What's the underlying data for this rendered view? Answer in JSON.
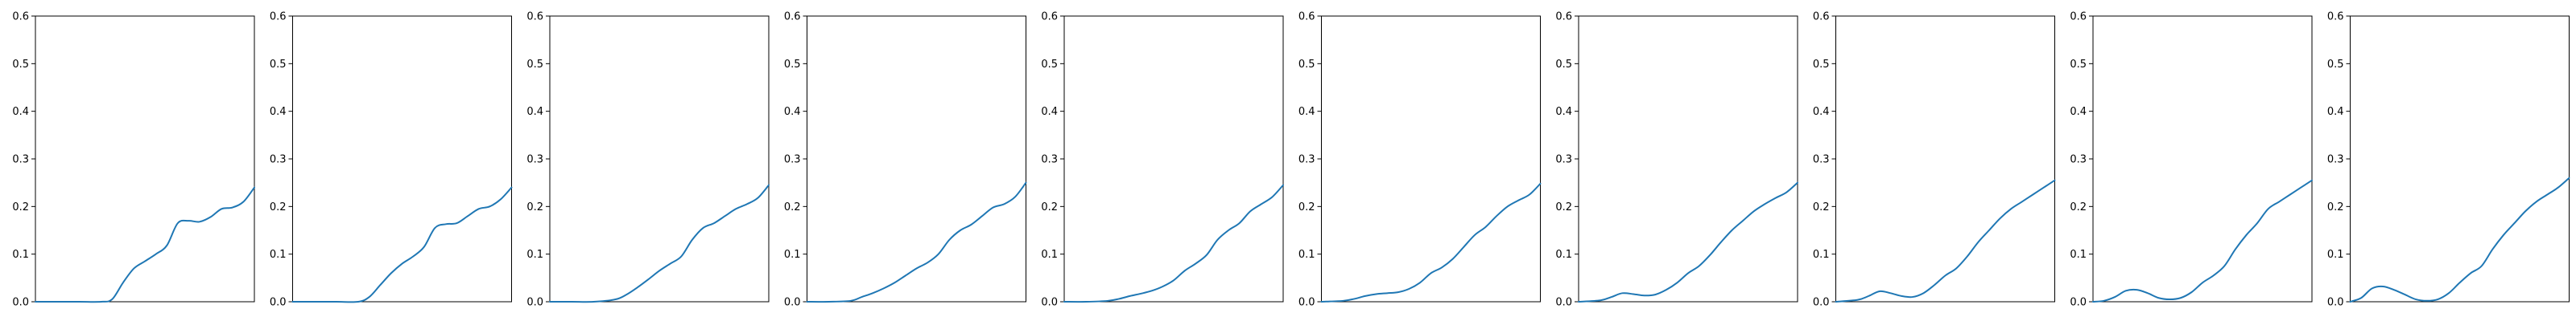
{
  "colors": {
    "series": "#1f77b4",
    "axes": "#000000",
    "background": "#ffffff"
  },
  "chart_data": [
    {
      "type": "line",
      "title": "",
      "xlabel": "",
      "ylabel": "",
      "ylim": [
        0,
        0.6
      ],
      "yticks": [
        "0.0",
        "0.1",
        "0.2",
        "0.3",
        "0.4",
        "0.5",
        "0.6"
      ],
      "x_ticks_shown": false,
      "grid": false,
      "series": [
        {
          "x": [
            0,
            0.1,
            0.2,
            0.3,
            0.35,
            0.4,
            0.45,
            0.5,
            0.55,
            0.6,
            0.65,
            0.7,
            0.75,
            0.8,
            0.85,
            0.9,
            0.95,
            1.0
          ],
          "values": [
            0.0,
            0.0,
            0.0,
            0.0,
            0.005,
            0.04,
            0.07,
            0.085,
            0.1,
            0.118,
            0.165,
            0.17,
            0.168,
            0.178,
            0.195,
            0.198,
            0.21,
            0.24
          ]
        }
      ]
    },
    {
      "type": "line",
      "title": "",
      "xlabel": "",
      "ylabel": "",
      "ylim": [
        0,
        0.6
      ],
      "yticks": [
        "0.0",
        "0.1",
        "0.2",
        "0.3",
        "0.4",
        "0.5",
        "0.6"
      ],
      "x_ticks_shown": false,
      "grid": false,
      "series": [
        {
          "x": [
            0,
            0.1,
            0.2,
            0.3,
            0.35,
            0.4,
            0.45,
            0.5,
            0.55,
            0.6,
            0.65,
            0.7,
            0.75,
            0.8,
            0.85,
            0.9,
            0.95,
            1.0
          ],
          "values": [
            0.0,
            0.0,
            0.0,
            0.0,
            0.01,
            0.035,
            0.06,
            0.08,
            0.095,
            0.115,
            0.155,
            0.163,
            0.165,
            0.18,
            0.195,
            0.2,
            0.215,
            0.24
          ]
        }
      ]
    },
    {
      "type": "line",
      "title": "",
      "xlabel": "",
      "ylabel": "",
      "ylim": [
        0,
        0.6
      ],
      "yticks": [
        "0.0",
        "0.1",
        "0.2",
        "0.3",
        "0.4",
        "0.5",
        "0.6"
      ],
      "x_ticks_shown": false,
      "grid": false,
      "series": [
        {
          "x": [
            0,
            0.1,
            0.2,
            0.3,
            0.35,
            0.4,
            0.45,
            0.5,
            0.55,
            0.6,
            0.65,
            0.7,
            0.75,
            0.8,
            0.85,
            0.9,
            0.95,
            1.0
          ],
          "values": [
            0.0,
            0.0,
            0.0,
            0.005,
            0.015,
            0.03,
            0.047,
            0.065,
            0.08,
            0.095,
            0.13,
            0.155,
            0.165,
            0.18,
            0.195,
            0.205,
            0.218,
            0.245
          ]
        }
      ]
    },
    {
      "type": "line",
      "title": "",
      "xlabel": "",
      "ylabel": "",
      "ylim": [
        0,
        0.6
      ],
      "yticks": [
        "0.0",
        "0.1",
        "0.2",
        "0.3",
        "0.4",
        "0.5",
        "0.6"
      ],
      "x_ticks_shown": false,
      "grid": false,
      "series": [
        {
          "x": [
            0,
            0.1,
            0.2,
            0.25,
            0.3,
            0.35,
            0.4,
            0.45,
            0.5,
            0.55,
            0.6,
            0.65,
            0.7,
            0.75,
            0.8,
            0.85,
            0.9,
            0.95,
            1.0
          ],
          "values": [
            0.0,
            0.0,
            0.002,
            0.01,
            0.018,
            0.028,
            0.04,
            0.055,
            0.07,
            0.082,
            0.1,
            0.13,
            0.15,
            0.162,
            0.18,
            0.198,
            0.205,
            0.22,
            0.25
          ]
        }
      ]
    },
    {
      "type": "line",
      "title": "",
      "xlabel": "",
      "ylabel": "",
      "ylim": [
        0,
        0.6
      ],
      "yticks": [
        "0.0",
        "0.1",
        "0.2",
        "0.3",
        "0.4",
        "0.5",
        "0.6"
      ],
      "x_ticks_shown": false,
      "grid": false,
      "series": [
        {
          "x": [
            0,
            0.1,
            0.2,
            0.25,
            0.3,
            0.35,
            0.4,
            0.45,
            0.5,
            0.55,
            0.6,
            0.65,
            0.7,
            0.75,
            0.8,
            0.85,
            0.9,
            0.95,
            1.0
          ],
          "values": [
            0.0,
            0.0,
            0.002,
            0.006,
            0.012,
            0.017,
            0.023,
            0.032,
            0.045,
            0.065,
            0.08,
            0.098,
            0.13,
            0.15,
            0.165,
            0.19,
            0.205,
            0.22,
            0.245
          ]
        }
      ]
    },
    {
      "type": "line",
      "title": "",
      "xlabel": "",
      "ylabel": "",
      "ylim": [
        0,
        0.6
      ],
      "yticks": [
        "0.0",
        "0.1",
        "0.2",
        "0.3",
        "0.4",
        "0.5",
        "0.6"
      ],
      "x_ticks_shown": false,
      "grid": false,
      "series": [
        {
          "x": [
            0,
            0.1,
            0.15,
            0.2,
            0.25,
            0.3,
            0.35,
            0.4,
            0.45,
            0.5,
            0.55,
            0.6,
            0.65,
            0.7,
            0.75,
            0.8,
            0.85,
            0.9,
            0.95,
            1.0
          ],
          "values": [
            0.0,
            0.002,
            0.006,
            0.012,
            0.016,
            0.018,
            0.02,
            0.027,
            0.04,
            0.06,
            0.072,
            0.09,
            0.115,
            0.14,
            0.157,
            0.18,
            0.2,
            0.213,
            0.225,
            0.248
          ]
        }
      ]
    },
    {
      "type": "line",
      "title": "",
      "xlabel": "",
      "ylabel": "",
      "ylim": [
        0,
        0.6
      ],
      "yticks": [
        "0.0",
        "0.1",
        "0.2",
        "0.3",
        "0.4",
        "0.5",
        "0.6"
      ],
      "x_ticks_shown": false,
      "grid": false,
      "series": [
        {
          "x": [
            0,
            0.1,
            0.15,
            0.2,
            0.25,
            0.3,
            0.35,
            0.4,
            0.45,
            0.5,
            0.55,
            0.6,
            0.65,
            0.7,
            0.75,
            0.8,
            0.85,
            0.9,
            0.95,
            1.0
          ],
          "values": [
            0.0,
            0.003,
            0.01,
            0.018,
            0.016,
            0.013,
            0.015,
            0.025,
            0.04,
            0.06,
            0.075,
            0.098,
            0.125,
            0.15,
            0.17,
            0.19,
            0.205,
            0.218,
            0.23,
            0.25
          ]
        }
      ]
    },
    {
      "type": "line",
      "title": "",
      "xlabel": "",
      "ylabel": "",
      "ylim": [
        0,
        0.6
      ],
      "yticks": [
        "0.0",
        "0.1",
        "0.2",
        "0.3",
        "0.4",
        "0.5",
        "0.6"
      ],
      "x_ticks_shown": false,
      "grid": false,
      "series": [
        {
          "x": [
            0,
            0.1,
            0.15,
            0.2,
            0.25,
            0.3,
            0.35,
            0.4,
            0.45,
            0.5,
            0.55,
            0.6,
            0.65,
            0.7,
            0.75,
            0.8,
            0.85,
            0.9,
            0.95,
            1.0
          ],
          "values": [
            0.0,
            0.004,
            0.012,
            0.022,
            0.018,
            0.012,
            0.01,
            0.018,
            0.035,
            0.055,
            0.07,
            0.095,
            0.125,
            0.15,
            0.175,
            0.195,
            0.21,
            0.225,
            0.24,
            0.255
          ]
        }
      ]
    },
    {
      "type": "line",
      "title": "",
      "xlabel": "",
      "ylabel": "",
      "ylim": [
        0,
        0.6
      ],
      "yticks": [
        "0.0",
        "0.1",
        "0.2",
        "0.3",
        "0.4",
        "0.5",
        "0.6"
      ],
      "x_ticks_shown": false,
      "grid": false,
      "series": [
        {
          "x": [
            0,
            0.05,
            0.1,
            0.15,
            0.2,
            0.25,
            0.3,
            0.35,
            0.4,
            0.45,
            0.5,
            0.55,
            0.6,
            0.65,
            0.7,
            0.75,
            0.8,
            0.85,
            0.9,
            0.95,
            1.0
          ],
          "values": [
            0.0,
            0.002,
            0.01,
            0.023,
            0.025,
            0.018,
            0.008,
            0.005,
            0.008,
            0.02,
            0.04,
            0.055,
            0.075,
            0.11,
            0.14,
            0.165,
            0.195,
            0.21,
            0.225,
            0.24,
            0.255
          ]
        }
      ]
    },
    {
      "type": "line",
      "title": "",
      "xlabel": "",
      "ylabel": "",
      "ylim": [
        0,
        0.6
      ],
      "yticks": [
        "0.0",
        "0.1",
        "0.2",
        "0.3",
        "0.4",
        "0.5",
        "0.6"
      ],
      "x_ticks_shown": false,
      "grid": false,
      "series": [
        {
          "x": [
            0,
            0.05,
            0.1,
            0.15,
            0.2,
            0.25,
            0.3,
            0.35,
            0.4,
            0.45,
            0.5,
            0.55,
            0.6,
            0.65,
            0.7,
            0.75,
            0.8,
            0.85,
            0.9,
            0.95,
            1.0
          ],
          "values": [
            0.0,
            0.008,
            0.028,
            0.032,
            0.025,
            0.015,
            0.005,
            0.002,
            0.005,
            0.018,
            0.04,
            0.06,
            0.075,
            0.11,
            0.14,
            0.165,
            0.19,
            0.21,
            0.225,
            0.24,
            0.26
          ]
        }
      ]
    }
  ]
}
